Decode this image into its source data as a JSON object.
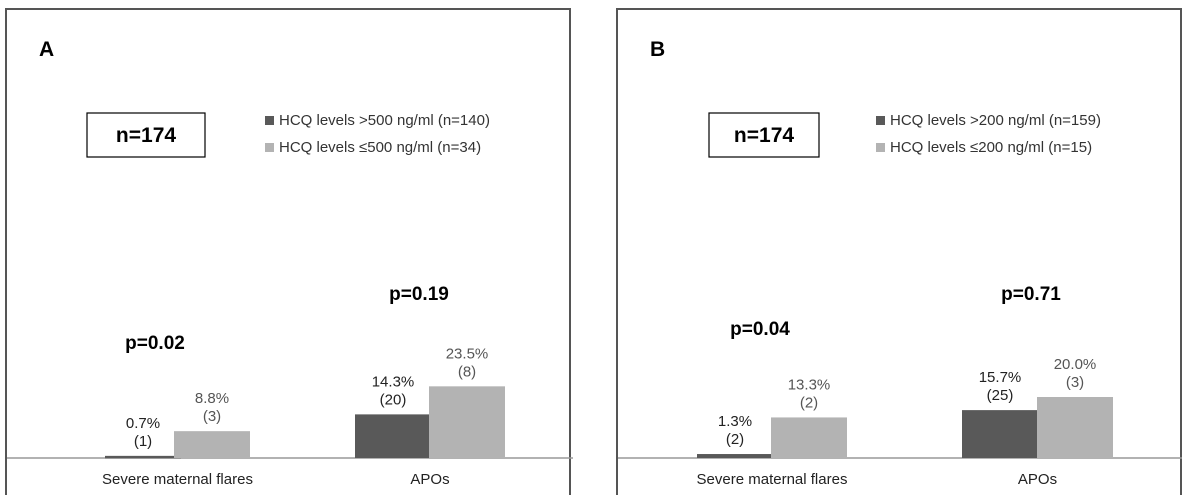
{
  "colors": {
    "dark": "#595959",
    "light": "#b3b3b3"
  },
  "chart_data": [
    {
      "type": "bar",
      "panel_label": "A",
      "n_label": "n=174",
      "categories": [
        "Severe maternal flares",
        "APOs"
      ],
      "series": [
        {
          "name": "HCQ levels >500 ng/ml (n=140)",
          "color": "#595959",
          "values": [
            0.7,
            14.3
          ],
          "labels": [
            "0.7%",
            "14.3%"
          ],
          "counts": [
            "(1)",
            "(20)"
          ]
        },
        {
          "name": "HCQ levels ≤500 ng/ml (n=34)",
          "color": "#b3b3b3",
          "values": [
            8.8,
            23.5
          ],
          "labels": [
            "8.8%",
            "23.5%"
          ],
          "counts": [
            "(3)",
            "(8)"
          ]
        }
      ],
      "p_values": [
        "p=0.02",
        "p=0.19"
      ],
      "ylim": [
        0,
        100
      ]
    },
    {
      "type": "bar",
      "panel_label": "B",
      "n_label": "n=174",
      "categories": [
        "Severe maternal flares",
        "APOs"
      ],
      "series": [
        {
          "name": "HCQ levels >200 ng/ml (n=159)",
          "color": "#595959",
          "values": [
            1.3,
            15.7
          ],
          "labels": [
            "1.3%",
            "15.7%"
          ],
          "counts": [
            "(2)",
            "(25)"
          ]
        },
        {
          "name": "HCQ levels ≤200 ng/ml (n=15)",
          "color": "#b3b3b3",
          "values": [
            13.3,
            20.0
          ],
          "labels": [
            "13.3%",
            "20.0%"
          ],
          "counts": [
            "(2)",
            "(3)"
          ]
        }
      ],
      "p_values": [
        "p=0.04",
        "p=0.71"
      ],
      "ylim": [
        0,
        100
      ]
    }
  ]
}
